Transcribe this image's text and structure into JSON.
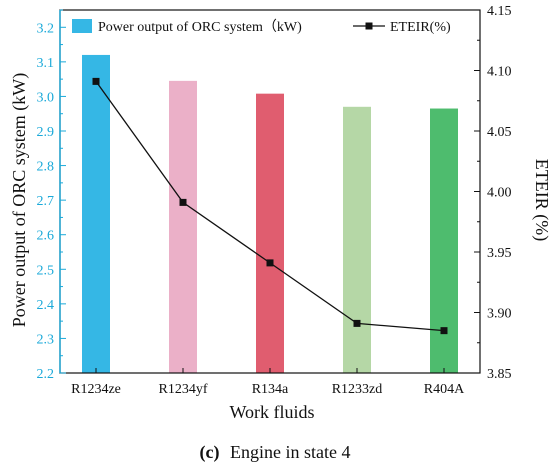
{
  "chart_data": {
    "type": "bar",
    "categories": [
      "R1234ze",
      "R1234yf",
      "R134a",
      "R1233zd",
      "R404A"
    ],
    "series": [
      {
        "name": "Power output of ORC system（kW)",
        "type": "bar",
        "axis": "left",
        "values": [
          3.12,
          3.045,
          3.008,
          2.97,
          2.965
        ],
        "colors": [
          "#35b7e5",
          "#ebb0c8",
          "#e05d6f",
          "#b5d7a6",
          "#4ebc6e"
        ]
      },
      {
        "name": "ETEIR(%)",
        "type": "line",
        "axis": "right",
        "values": [
          4.091,
          3.991,
          3.941,
          3.891,
          3.885
        ],
        "color": "#111111",
        "marker": "square"
      }
    ],
    "xlabel": "Work fluids",
    "ylabel": "Power output of ORC system (kW)",
    "ylabel_right": "ETEIR (%)",
    "ylim": [
      2.2,
      3.25
    ],
    "ylim_right": [
      3.85,
      4.15
    ],
    "yticks": [
      "2.2",
      "2.3",
      "2.4",
      "2.5",
      "2.6",
      "2.7",
      "2.8",
      "2.9",
      "3.0",
      "3.1",
      "3.2"
    ],
    "yticks_right": [
      "3.85",
      "3.90",
      "3.95",
      "4.00",
      "4.05",
      "4.10",
      "4.15"
    ],
    "legend_position": "top",
    "grid": false,
    "left_axis_color": "#1aa9d9"
  },
  "caption": {
    "label": "(c)",
    "text": "Engine in state 4"
  }
}
